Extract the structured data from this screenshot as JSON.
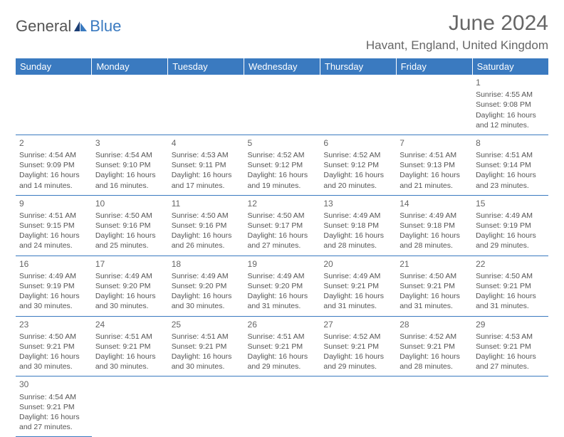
{
  "logo": {
    "text1": "General",
    "text2": "Blue"
  },
  "title": "June 2024",
  "location": "Havant, England, United Kingdom",
  "colors": {
    "header_bg": "#3a7ac0",
    "header_text": "#ffffff",
    "cell_border": "#3a7ac0",
    "body_text": "#555555",
    "logo_blue": "#3a7ac0"
  },
  "day_headers": [
    "Sunday",
    "Monday",
    "Tuesday",
    "Wednesday",
    "Thursday",
    "Friday",
    "Saturday"
  ],
  "weeks": [
    [
      {
        "date": ""
      },
      {
        "date": ""
      },
      {
        "date": ""
      },
      {
        "date": ""
      },
      {
        "date": ""
      },
      {
        "date": ""
      },
      {
        "date": "1",
        "sunrise": "Sunrise: 4:55 AM",
        "sunset": "Sunset: 9:08 PM",
        "daylight1": "Daylight: 16 hours",
        "daylight2": "and 12 minutes."
      }
    ],
    [
      {
        "date": "2",
        "sunrise": "Sunrise: 4:54 AM",
        "sunset": "Sunset: 9:09 PM",
        "daylight1": "Daylight: 16 hours",
        "daylight2": "and 14 minutes."
      },
      {
        "date": "3",
        "sunrise": "Sunrise: 4:54 AM",
        "sunset": "Sunset: 9:10 PM",
        "daylight1": "Daylight: 16 hours",
        "daylight2": "and 16 minutes."
      },
      {
        "date": "4",
        "sunrise": "Sunrise: 4:53 AM",
        "sunset": "Sunset: 9:11 PM",
        "daylight1": "Daylight: 16 hours",
        "daylight2": "and 17 minutes."
      },
      {
        "date": "5",
        "sunrise": "Sunrise: 4:52 AM",
        "sunset": "Sunset: 9:12 PM",
        "daylight1": "Daylight: 16 hours",
        "daylight2": "and 19 minutes."
      },
      {
        "date": "6",
        "sunrise": "Sunrise: 4:52 AM",
        "sunset": "Sunset: 9:12 PM",
        "daylight1": "Daylight: 16 hours",
        "daylight2": "and 20 minutes."
      },
      {
        "date": "7",
        "sunrise": "Sunrise: 4:51 AM",
        "sunset": "Sunset: 9:13 PM",
        "daylight1": "Daylight: 16 hours",
        "daylight2": "and 21 minutes."
      },
      {
        "date": "8",
        "sunrise": "Sunrise: 4:51 AM",
        "sunset": "Sunset: 9:14 PM",
        "daylight1": "Daylight: 16 hours",
        "daylight2": "and 23 minutes."
      }
    ],
    [
      {
        "date": "9",
        "sunrise": "Sunrise: 4:51 AM",
        "sunset": "Sunset: 9:15 PM",
        "daylight1": "Daylight: 16 hours",
        "daylight2": "and 24 minutes."
      },
      {
        "date": "10",
        "sunrise": "Sunrise: 4:50 AM",
        "sunset": "Sunset: 9:16 PM",
        "daylight1": "Daylight: 16 hours",
        "daylight2": "and 25 minutes."
      },
      {
        "date": "11",
        "sunrise": "Sunrise: 4:50 AM",
        "sunset": "Sunset: 9:16 PM",
        "daylight1": "Daylight: 16 hours",
        "daylight2": "and 26 minutes."
      },
      {
        "date": "12",
        "sunrise": "Sunrise: 4:50 AM",
        "sunset": "Sunset: 9:17 PM",
        "daylight1": "Daylight: 16 hours",
        "daylight2": "and 27 minutes."
      },
      {
        "date": "13",
        "sunrise": "Sunrise: 4:49 AM",
        "sunset": "Sunset: 9:18 PM",
        "daylight1": "Daylight: 16 hours",
        "daylight2": "and 28 minutes."
      },
      {
        "date": "14",
        "sunrise": "Sunrise: 4:49 AM",
        "sunset": "Sunset: 9:18 PM",
        "daylight1": "Daylight: 16 hours",
        "daylight2": "and 28 minutes."
      },
      {
        "date": "15",
        "sunrise": "Sunrise: 4:49 AM",
        "sunset": "Sunset: 9:19 PM",
        "daylight1": "Daylight: 16 hours",
        "daylight2": "and 29 minutes."
      }
    ],
    [
      {
        "date": "16",
        "sunrise": "Sunrise: 4:49 AM",
        "sunset": "Sunset: 9:19 PM",
        "daylight1": "Daylight: 16 hours",
        "daylight2": "and 30 minutes."
      },
      {
        "date": "17",
        "sunrise": "Sunrise: 4:49 AM",
        "sunset": "Sunset: 9:20 PM",
        "daylight1": "Daylight: 16 hours",
        "daylight2": "and 30 minutes."
      },
      {
        "date": "18",
        "sunrise": "Sunrise: 4:49 AM",
        "sunset": "Sunset: 9:20 PM",
        "daylight1": "Daylight: 16 hours",
        "daylight2": "and 30 minutes."
      },
      {
        "date": "19",
        "sunrise": "Sunrise: 4:49 AM",
        "sunset": "Sunset: 9:20 PM",
        "daylight1": "Daylight: 16 hours",
        "daylight2": "and 31 minutes."
      },
      {
        "date": "20",
        "sunrise": "Sunrise: 4:49 AM",
        "sunset": "Sunset: 9:21 PM",
        "daylight1": "Daylight: 16 hours",
        "daylight2": "and 31 minutes."
      },
      {
        "date": "21",
        "sunrise": "Sunrise: 4:50 AM",
        "sunset": "Sunset: 9:21 PM",
        "daylight1": "Daylight: 16 hours",
        "daylight2": "and 31 minutes."
      },
      {
        "date": "22",
        "sunrise": "Sunrise: 4:50 AM",
        "sunset": "Sunset: 9:21 PM",
        "daylight1": "Daylight: 16 hours",
        "daylight2": "and 31 minutes."
      }
    ],
    [
      {
        "date": "23",
        "sunrise": "Sunrise: 4:50 AM",
        "sunset": "Sunset: 9:21 PM",
        "daylight1": "Daylight: 16 hours",
        "daylight2": "and 30 minutes."
      },
      {
        "date": "24",
        "sunrise": "Sunrise: 4:51 AM",
        "sunset": "Sunset: 9:21 PM",
        "daylight1": "Daylight: 16 hours",
        "daylight2": "and 30 minutes."
      },
      {
        "date": "25",
        "sunrise": "Sunrise: 4:51 AM",
        "sunset": "Sunset: 9:21 PM",
        "daylight1": "Daylight: 16 hours",
        "daylight2": "and 30 minutes."
      },
      {
        "date": "26",
        "sunrise": "Sunrise: 4:51 AM",
        "sunset": "Sunset: 9:21 PM",
        "daylight1": "Daylight: 16 hours",
        "daylight2": "and 29 minutes."
      },
      {
        "date": "27",
        "sunrise": "Sunrise: 4:52 AM",
        "sunset": "Sunset: 9:21 PM",
        "daylight1": "Daylight: 16 hours",
        "daylight2": "and 29 minutes."
      },
      {
        "date": "28",
        "sunrise": "Sunrise: 4:52 AM",
        "sunset": "Sunset: 9:21 PM",
        "daylight1": "Daylight: 16 hours",
        "daylight2": "and 28 minutes."
      },
      {
        "date": "29",
        "sunrise": "Sunrise: 4:53 AM",
        "sunset": "Sunset: 9:21 PM",
        "daylight1": "Daylight: 16 hours",
        "daylight2": "and 27 minutes."
      }
    ],
    [
      {
        "date": "30",
        "sunrise": "Sunrise: 4:54 AM",
        "sunset": "Sunset: 9:21 PM",
        "daylight1": "Daylight: 16 hours",
        "daylight2": "and 27 minutes."
      },
      {
        "date": ""
      },
      {
        "date": ""
      },
      {
        "date": ""
      },
      {
        "date": ""
      },
      {
        "date": ""
      },
      {
        "date": ""
      }
    ]
  ]
}
